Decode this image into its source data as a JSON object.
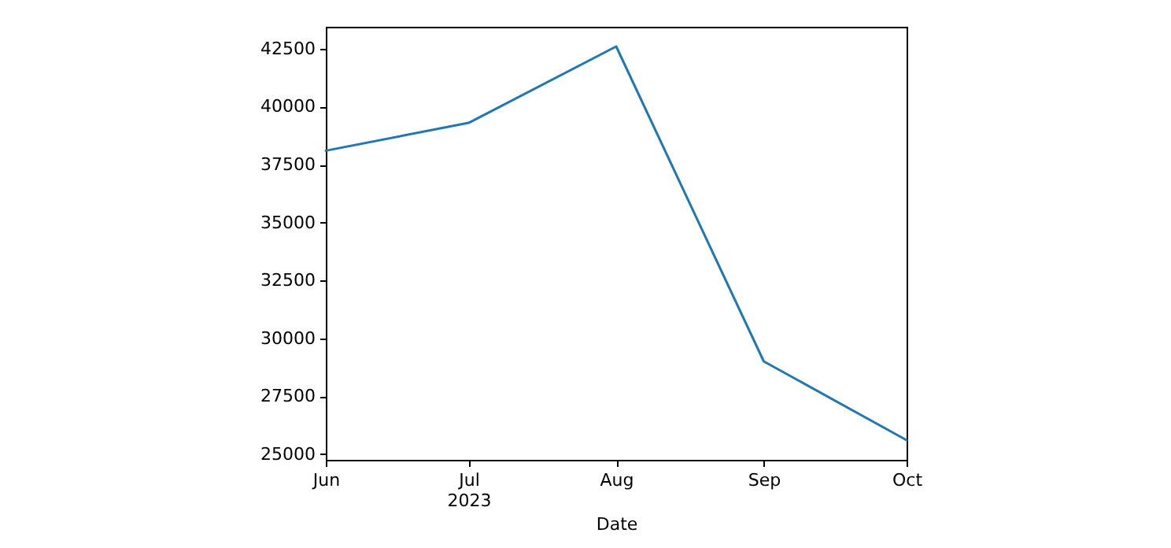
{
  "chart_data": {
    "type": "line",
    "xlabel": "Date",
    "x": [
      "2023-06",
      "2023-07",
      "2023-08",
      "2023-09",
      "2023-10"
    ],
    "series": [
      {
        "color": "#1f77b4",
        "values": [
          38100,
          39300,
          42600,
          29000,
          25600
        ]
      }
    ],
    "xlim": [
      "2023-06",
      "2023-10"
    ],
    "xticks": [
      {
        "value": "2023-06",
        "label": "Jun"
      },
      {
        "value": "2023-07",
        "label": "Jul\n2023"
      },
      {
        "value": "2023-08",
        "label": "Aug"
      },
      {
        "value": "2023-09",
        "label": "Sep"
      },
      {
        "value": "2023-10",
        "label": "Oct"
      }
    ],
    "ylim": [
      24750,
      43450
    ],
    "yticks": [
      25000,
      27500,
      30000,
      32500,
      35000,
      37500,
      40000,
      42500
    ],
    "grid": false,
    "marker": "none",
    "line_style": "solid"
  }
}
